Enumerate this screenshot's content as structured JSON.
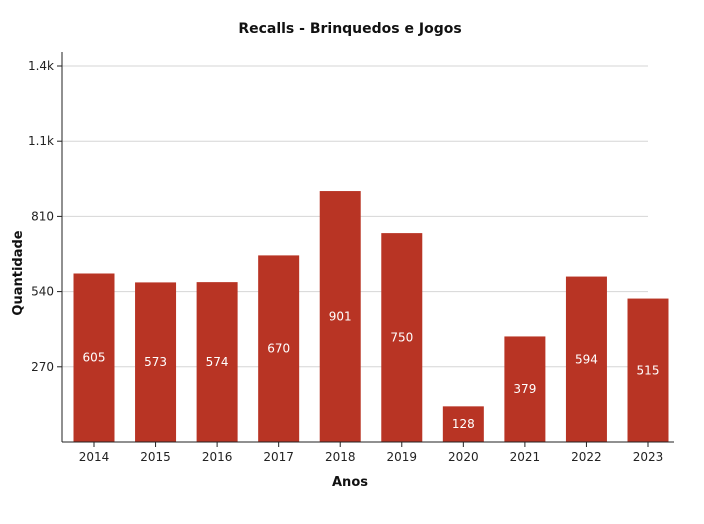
{
  "chart_data": {
    "type": "bar",
    "title": "Recalls - Brinquedos e Jogos",
    "xlabel": "Anos",
    "ylabel": "Quantidade",
    "categories": [
      "2014",
      "2015",
      "2016",
      "2017",
      "2018",
      "2019",
      "2020",
      "2021",
      "2022",
      "2023"
    ],
    "values": [
      605,
      573,
      574,
      670,
      901,
      750,
      128,
      379,
      594,
      515
    ],
    "ylim": [
      0,
      1350
    ],
    "yticks": [
      270,
      540,
      810,
      1080,
      1350
    ],
    "ytick_labels": [
      "270",
      "540",
      "810",
      "1.1k",
      "1.4k"
    ],
    "grid": true,
    "bar_color": "#b83424",
    "label_color": "#ffffff"
  }
}
